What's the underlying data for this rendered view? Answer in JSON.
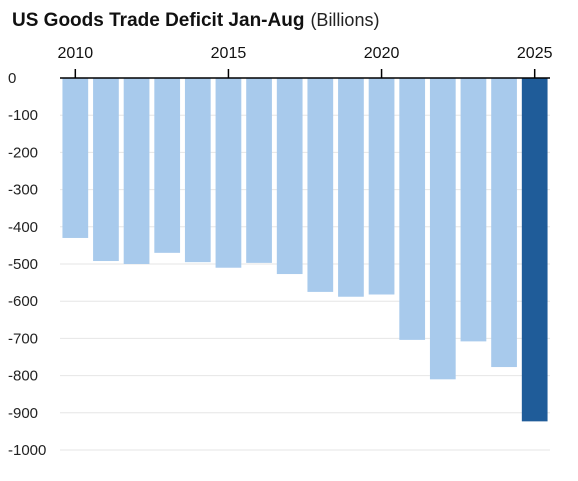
{
  "chart_data": {
    "type": "bar",
    "title": "US Goods Trade Deficit Jan-Aug",
    "unit": "(Billions)",
    "xlabel": "",
    "ylabel": "",
    "categories": [
      "2010",
      "2011",
      "2012",
      "2013",
      "2014",
      "2015",
      "2016",
      "2017",
      "2018",
      "2019",
      "2020",
      "2021",
      "2022",
      "2023",
      "2024",
      "2025"
    ],
    "values": [
      -430,
      -492,
      -500,
      -470,
      -495,
      -510,
      -497,
      -527,
      -575,
      -588,
      -582,
      -704,
      -810,
      -708,
      -777,
      -923
    ],
    "x_tick_labels": [
      "2010",
      "2015",
      "2020",
      "2025"
    ],
    "y_ticks": [
      0,
      -100,
      -200,
      -300,
      -400,
      -500,
      -600,
      -700,
      -800,
      -900,
      -1000
    ],
    "ylim": [
      -1000,
      0
    ],
    "x_axis_position": "top",
    "grid": true,
    "colors": {
      "bar": "#a8caec",
      "highlight": "#1f5c99",
      "grid": "#e6e6e6",
      "axis": "#000000"
    },
    "highlight_category": "2025"
  }
}
